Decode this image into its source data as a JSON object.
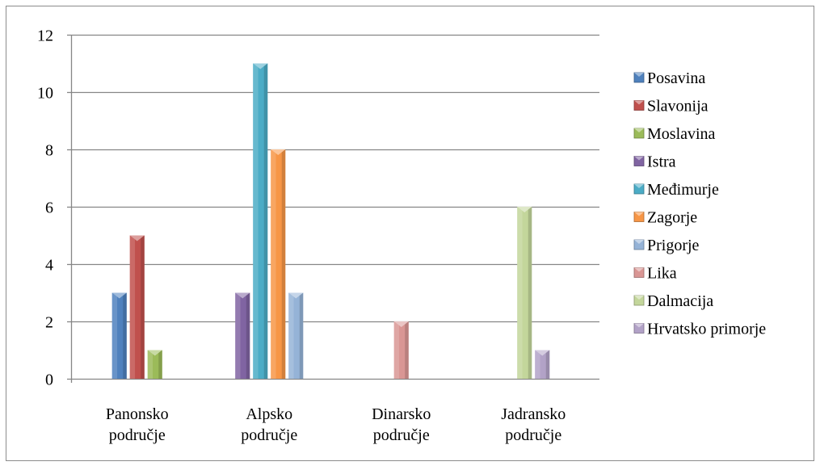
{
  "chart_data": {
    "type": "bar",
    "categories": [
      "Panonsko\npodručje",
      "Alpsko\npodručje",
      "Dinarsko\npodručje",
      "Jadransko\npodručje"
    ],
    "yticks": [
      "0",
      "2",
      "4",
      "6",
      "8",
      "10",
      "12"
    ],
    "ylim": [
      0,
      12
    ],
    "grid": true,
    "legend_position": "right",
    "series": [
      {
        "name": "Posavina",
        "color": "#4f81bd",
        "values": [
          3,
          0,
          0,
          0
        ]
      },
      {
        "name": "Slavonija",
        "color": "#c0504d",
        "values": [
          5,
          0,
          0,
          0
        ]
      },
      {
        "name": "Moslavina",
        "color": "#9bbb59",
        "values": [
          1,
          0,
          0,
          0
        ]
      },
      {
        "name": "Istra",
        "color": "#8064a2",
        "values": [
          0,
          3,
          0,
          0
        ]
      },
      {
        "name": "Međimurje",
        "color": "#4bacc6",
        "values": [
          0,
          11,
          0,
          0
        ]
      },
      {
        "name": "Zagorje",
        "color": "#f79646",
        "values": [
          0,
          8,
          0,
          0
        ]
      },
      {
        "name": "Prigorje",
        "color": "#95b3d7",
        "values": [
          0,
          3,
          0,
          0
        ]
      },
      {
        "name": "Lika",
        "color": "#d99694",
        "values": [
          0,
          0,
          2,
          0
        ]
      },
      {
        "name": "Dalmacija",
        "color": "#c3d69b",
        "values": [
          0,
          0,
          0,
          6
        ]
      },
      {
        "name": "Hrvatsko primorje",
        "color": "#b2a2c7",
        "values": [
          0,
          0,
          0,
          1
        ]
      }
    ]
  }
}
